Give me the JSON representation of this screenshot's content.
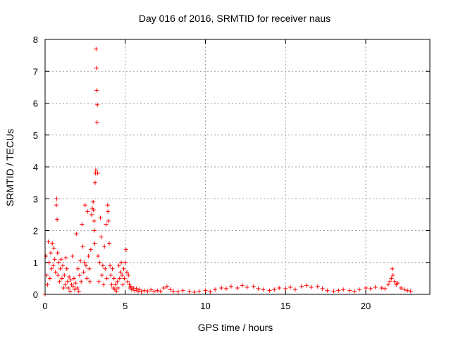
{
  "chart_data": {
    "type": "scatter",
    "title": "Day 016 of 2016, SRMTID for receiver naus",
    "xlabel": "GPS time / hours",
    "ylabel": "SRMTID / TECUs",
    "xlim": [
      0,
      24
    ],
    "ylim": [
      0,
      8
    ],
    "x_ticks": [
      0,
      5,
      10,
      15,
      20
    ],
    "y_ticks": [
      0,
      1,
      2,
      3,
      4,
      5,
      6,
      7,
      8
    ],
    "x_tick_labels": [
      "0",
      "5",
      "10",
      "15",
      "20"
    ],
    "y_tick_labels": [
      "0",
      "1",
      "2",
      "3",
      "4",
      "5",
      "6",
      "7",
      "8"
    ],
    "grid": true,
    "marker": "+",
    "series_color": "#ff0000",
    "series": [
      {
        "name": "SRMTID",
        "points": [
          [
            0.0,
            0.0
          ],
          [
            0.05,
            1.2
          ],
          [
            0.1,
            0.6
          ],
          [
            0.15,
            0.3
          ],
          [
            0.2,
            1.65
          ],
          [
            0.25,
            1.0
          ],
          [
            0.3,
            0.5
          ],
          [
            0.35,
            1.3
          ],
          [
            0.4,
            0.8
          ],
          [
            0.45,
            1.6
          ],
          [
            0.5,
            0.9
          ],
          [
            0.55,
            1.45
          ],
          [
            0.6,
            1.1
          ],
          [
            0.65,
            0.7
          ],
          [
            0.7,
            2.8
          ],
          [
            0.72,
            3.0
          ],
          [
            0.75,
            2.35
          ],
          [
            0.78,
            1.3
          ],
          [
            0.8,
            0.6
          ],
          [
            0.85,
            1.0
          ],
          [
            0.9,
            0.4
          ],
          [
            0.95,
            0.8
          ],
          [
            1.0,
            1.1
          ],
          [
            1.05,
            0.5
          ],
          [
            1.1,
            0.9
          ],
          [
            1.15,
            0.2
          ],
          [
            1.2,
            0.6
          ],
          [
            1.25,
            0.3
          ],
          [
            1.3,
            1.15
          ],
          [
            1.35,
            0.8
          ],
          [
            1.4,
            0.4
          ],
          [
            1.45,
            0.2
          ],
          [
            1.5,
            0.55
          ],
          [
            1.55,
            0.1
          ],
          [
            1.6,
            0.45
          ],
          [
            1.65,
            0.3
          ],
          [
            1.7,
            1.2
          ],
          [
            1.75,
            0.25
          ],
          [
            1.8,
            0.5
          ],
          [
            1.85,
            0.15
          ],
          [
            1.9,
            0.35
          ],
          [
            1.95,
            1.9
          ],
          [
            2.0,
            0.2
          ],
          [
            2.05,
            0.8
          ],
          [
            2.1,
            0.1
          ],
          [
            2.15,
            0.6
          ],
          [
            2.2,
            1.05
          ],
          [
            2.25,
            0.4
          ],
          [
            2.3,
            2.2
          ],
          [
            2.35,
            1.5
          ],
          [
            2.4,
            0.7
          ],
          [
            2.45,
            1.0
          ],
          [
            2.5,
            2.8
          ],
          [
            2.55,
            0.9
          ],
          [
            2.6,
            0.5
          ],
          [
            2.65,
            2.6
          ],
          [
            2.7,
            1.2
          ],
          [
            2.75,
            0.8
          ],
          [
            2.8,
            0.4
          ],
          [
            2.85,
            1.4
          ],
          [
            2.9,
            2.5
          ],
          [
            2.95,
            2.7
          ],
          [
            3.0,
            2.9
          ],
          [
            3.02,
            2.65
          ],
          [
            3.05,
            2.3
          ],
          [
            3.08,
            2.0
          ],
          [
            3.1,
            1.6
          ],
          [
            3.12,
            3.5
          ],
          [
            3.14,
            3.8
          ],
          [
            3.16,
            3.9
          ],
          [
            3.18,
            7.7
          ],
          [
            3.2,
            7.1
          ],
          [
            3.22,
            6.4
          ],
          [
            3.24,
            5.4
          ],
          [
            3.26,
            5.95
          ],
          [
            3.28,
            3.8
          ],
          [
            3.3,
            1.2
          ],
          [
            3.35,
            0.4
          ],
          [
            3.4,
            1.0
          ],
          [
            3.45,
            2.4
          ],
          [
            3.5,
            1.8
          ],
          [
            3.55,
            0.6
          ],
          [
            3.6,
            0.9
          ],
          [
            3.65,
            0.3
          ],
          [
            3.7,
            1.5
          ],
          [
            3.75,
            0.8
          ],
          [
            3.8,
            2.2
          ],
          [
            3.85,
            0.5
          ],
          [
            3.9,
            2.8
          ],
          [
            3.92,
            2.6
          ],
          [
            3.95,
            2.3
          ],
          [
            4.0,
            1.6
          ],
          [
            4.05,
            0.9
          ],
          [
            4.1,
            0.6
          ],
          [
            4.15,
            0.3
          ],
          [
            4.2,
            0.8
          ],
          [
            4.25,
            0.2
          ],
          [
            4.3,
            0.5
          ],
          [
            4.35,
            0.15
          ],
          [
            4.4,
            0.3
          ],
          [
            4.45,
            0.1
          ],
          [
            4.5,
            0.4
          ],
          [
            4.55,
            0.2
          ],
          [
            4.6,
            0.9
          ],
          [
            4.65,
            0.5
          ],
          [
            4.7,
            0.7
          ],
          [
            4.75,
            1.0
          ],
          [
            4.8,
            0.6
          ],
          [
            4.85,
            0.3
          ],
          [
            4.9,
            0.8
          ],
          [
            4.95,
            0.5
          ],
          [
            5.0,
            1.0
          ],
          [
            5.05,
            1.4
          ],
          [
            5.1,
            0.7
          ],
          [
            5.15,
            0.4
          ],
          [
            5.2,
            0.6
          ],
          [
            5.25,
            0.3
          ],
          [
            5.3,
            0.2
          ],
          [
            5.35,
            0.25
          ],
          [
            5.4,
            0.15
          ],
          [
            5.5,
            0.2
          ],
          [
            5.6,
            0.12
          ],
          [
            5.7,
            0.18
          ],
          [
            5.8,
            0.1
          ],
          [
            5.9,
            0.15
          ],
          [
            6.0,
            0.08
          ],
          [
            6.2,
            0.12
          ],
          [
            6.4,
            0.1
          ],
          [
            6.6,
            0.14
          ],
          [
            6.8,
            0.09
          ],
          [
            7.0,
            0.12
          ],
          [
            7.2,
            0.1
          ],
          [
            7.4,
            0.2
          ],
          [
            7.6,
            0.25
          ],
          [
            7.8,
            0.15
          ],
          [
            8.0,
            0.1
          ],
          [
            8.3,
            0.08
          ],
          [
            8.6,
            0.12
          ],
          [
            9.0,
            0.09
          ],
          [
            9.3,
            0.07
          ],
          [
            9.6,
            0.1
          ],
          [
            10.0,
            0.12
          ],
          [
            10.3,
            0.08
          ],
          [
            10.6,
            0.15
          ],
          [
            11.0,
            0.2
          ],
          [
            11.3,
            0.18
          ],
          [
            11.6,
            0.25
          ],
          [
            12.0,
            0.2
          ],
          [
            12.3,
            0.28
          ],
          [
            12.6,
            0.22
          ],
          [
            13.0,
            0.25
          ],
          [
            13.3,
            0.18
          ],
          [
            13.6,
            0.15
          ],
          [
            14.0,
            0.12
          ],
          [
            14.3,
            0.15
          ],
          [
            14.6,
            0.2
          ],
          [
            15.0,
            0.18
          ],
          [
            15.3,
            0.22
          ],
          [
            15.6,
            0.15
          ],
          [
            16.0,
            0.25
          ],
          [
            16.3,
            0.28
          ],
          [
            16.6,
            0.22
          ],
          [
            17.0,
            0.25
          ],
          [
            17.3,
            0.18
          ],
          [
            17.6,
            0.12
          ],
          [
            18.0,
            0.1
          ],
          [
            18.3,
            0.12
          ],
          [
            18.6,
            0.15
          ],
          [
            19.0,
            0.12
          ],
          [
            19.3,
            0.1
          ],
          [
            19.6,
            0.15
          ],
          [
            20.0,
            0.2
          ],
          [
            20.3,
            0.18
          ],
          [
            20.6,
            0.22
          ],
          [
            21.0,
            0.2
          ],
          [
            21.2,
            0.18
          ],
          [
            21.4,
            0.3
          ],
          [
            21.5,
            0.4
          ],
          [
            21.6,
            0.5
          ],
          [
            21.65,
            0.8
          ],
          [
            21.7,
            0.6
          ],
          [
            21.8,
            0.4
          ],
          [
            21.9,
            0.3
          ],
          [
            22.0,
            0.35
          ],
          [
            22.2,
            0.2
          ],
          [
            22.4,
            0.15
          ],
          [
            22.6,
            0.12
          ],
          [
            22.8,
            0.1
          ]
        ]
      }
    ]
  }
}
